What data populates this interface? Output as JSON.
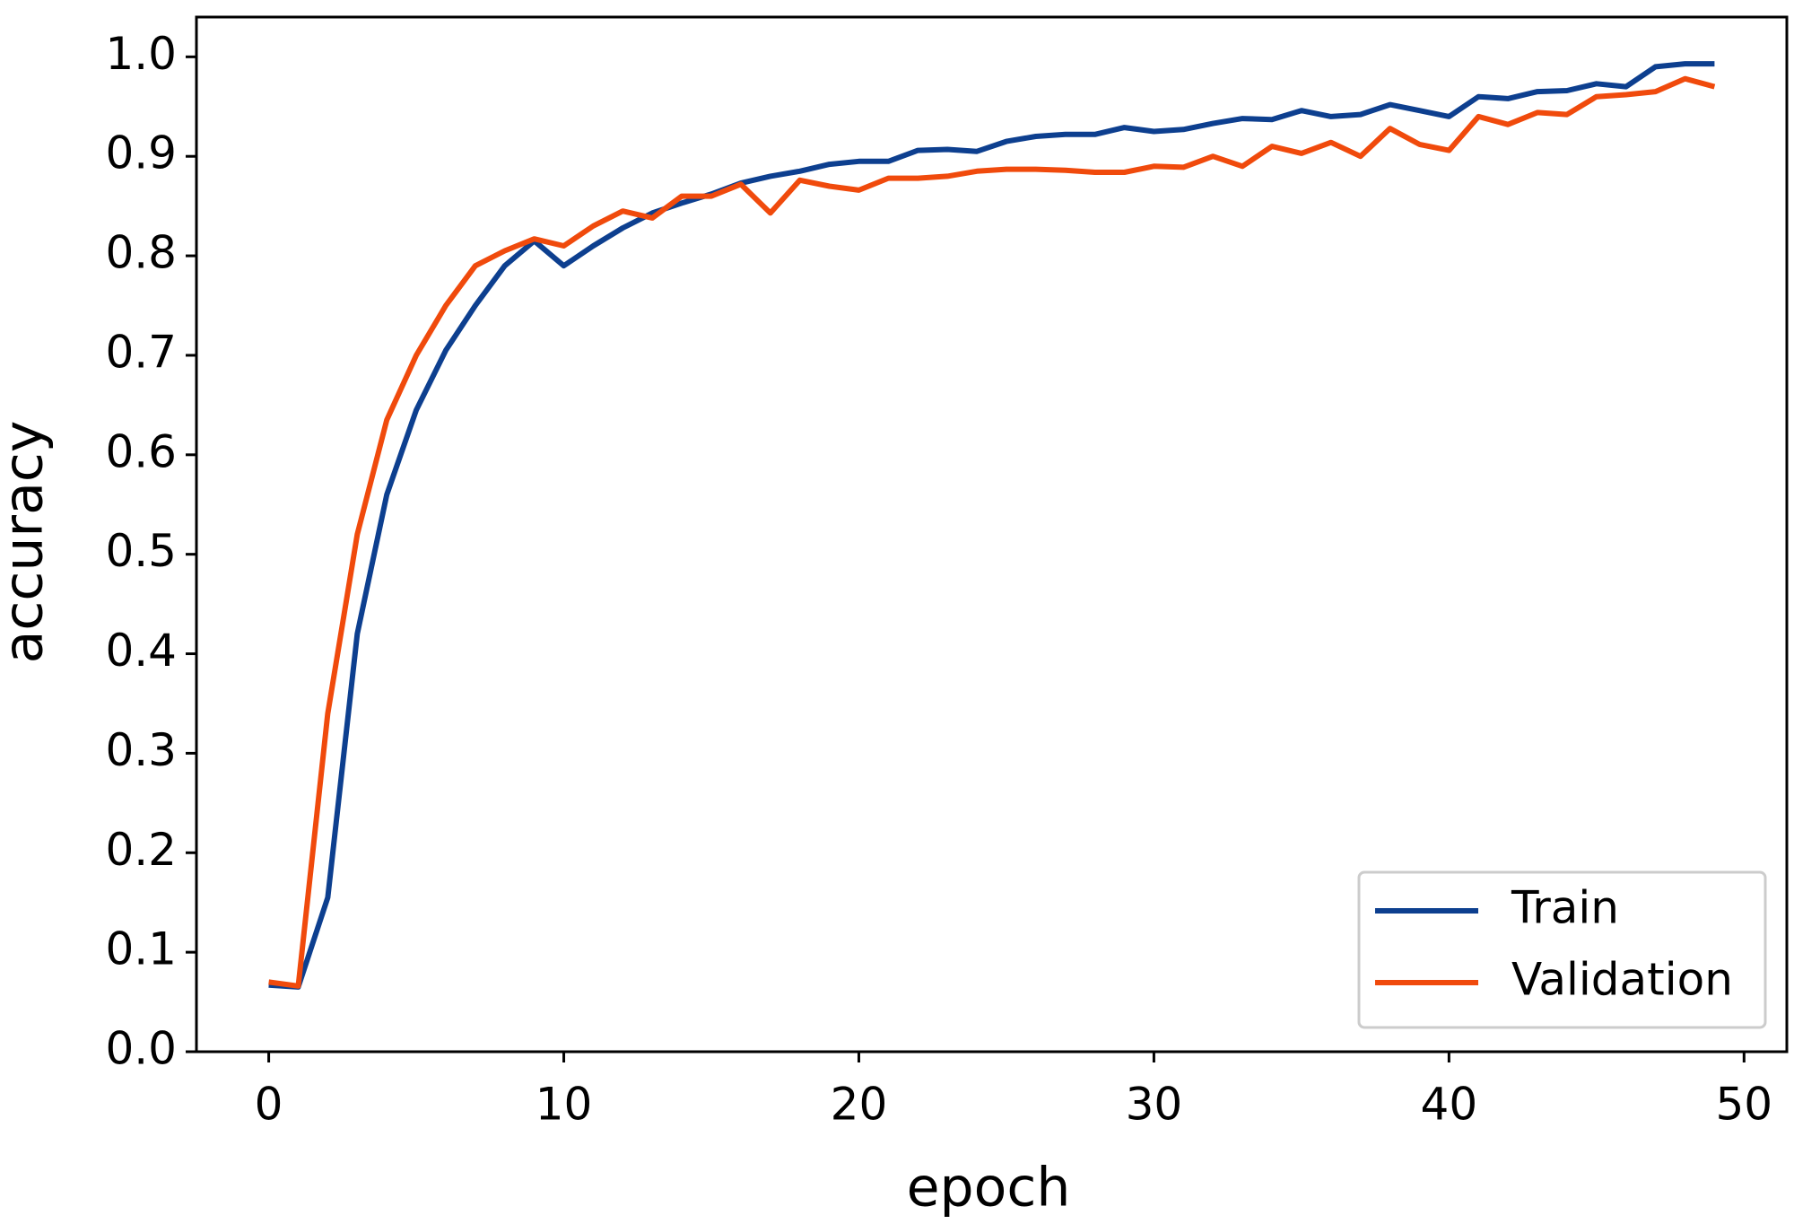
{
  "chart_data": {
    "type": "line",
    "xlabel": "epoch",
    "ylabel": "accuracy",
    "x": [
      0,
      1,
      2,
      3,
      4,
      5,
      6,
      7,
      8,
      9,
      10,
      11,
      12,
      13,
      14,
      15,
      16,
      17,
      18,
      19,
      20,
      21,
      22,
      23,
      24,
      25,
      26,
      27,
      28,
      29,
      30,
      31,
      32,
      33,
      34,
      35,
      36,
      37,
      38,
      39,
      40,
      41,
      42,
      43,
      44,
      45,
      46,
      47,
      48,
      49
    ],
    "series": [
      {
        "name": "Train",
        "color": "#0d3f8f",
        "values": [
          0.067,
          0.065,
          0.155,
          0.42,
          0.56,
          0.645,
          0.705,
          0.75,
          0.79,
          0.815,
          0.79,
          0.81,
          0.828,
          0.843,
          0.853,
          0.862,
          0.873,
          0.88,
          0.885,
          0.892,
          0.895,
          0.895,
          0.906,
          0.907,
          0.905,
          0.915,
          0.92,
          0.922,
          0.922,
          0.929,
          0.925,
          0.927,
          0.933,
          0.938,
          0.937,
          0.946,
          0.94,
          0.942,
          0.952,
          0.946,
          0.94,
          0.96,
          0.958,
          0.965,
          0.966,
          0.973,
          0.97,
          0.99,
          0.993,
          0.993
        ]
      },
      {
        "name": "Validation",
        "color": "#f04a0c",
        "values": [
          0.07,
          0.066,
          0.34,
          0.52,
          0.635,
          0.7,
          0.75,
          0.79,
          0.805,
          0.817,
          0.81,
          0.83,
          0.845,
          0.838,
          0.86,
          0.86,
          0.872,
          0.843,
          0.876,
          0.87,
          0.866,
          0.878,
          0.878,
          0.88,
          0.885,
          0.887,
          0.887,
          0.886,
          0.884,
          0.884,
          0.89,
          0.889,
          0.9,
          0.89,
          0.91,
          0.903,
          0.914,
          0.9,
          0.928,
          0.912,
          0.906,
          0.94,
          0.932,
          0.944,
          0.942,
          0.96,
          0.962,
          0.965,
          0.978,
          0.97
        ]
      }
    ],
    "xlim": [
      -2.45,
      51.45
    ],
    "ylim": [
      0,
      1.04
    ],
    "xticks": [
      0,
      10,
      20,
      30,
      40,
      50
    ],
    "yticks": [
      {
        "value": 0,
        "label": "0.0"
      },
      0.1,
      0.2,
      0.3,
      0.4,
      0.5,
      0.6,
      0.7,
      0.8,
      0.9,
      {
        "value": 1,
        "label": "1.0"
      }
    ],
    "legend": "lower right"
  }
}
